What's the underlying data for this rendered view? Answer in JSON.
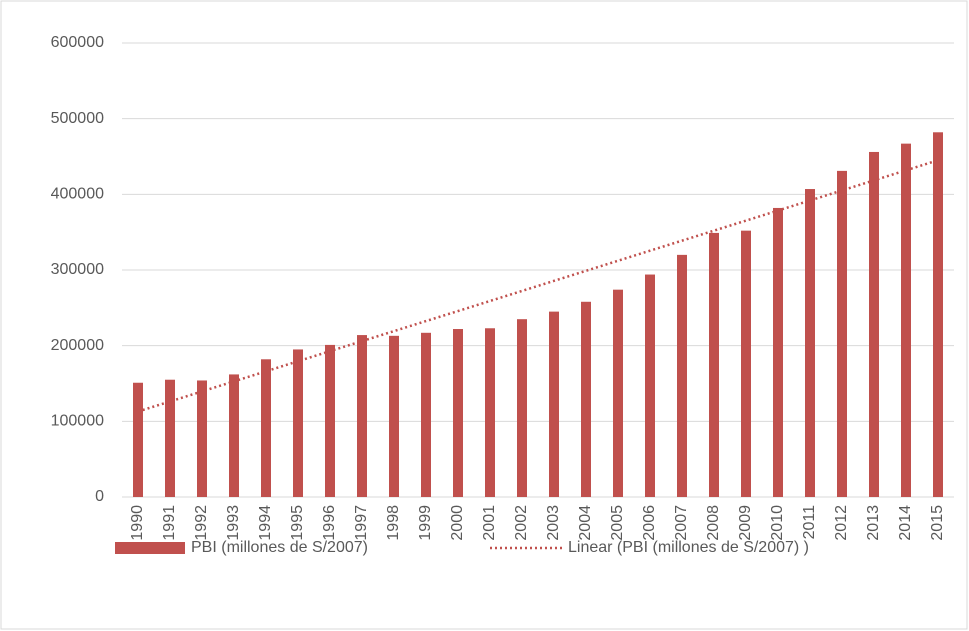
{
  "chart_data": {
    "type": "bar",
    "categories": [
      "1990",
      "1991",
      "1992",
      "1993",
      "1994",
      "1995",
      "1996",
      "1997",
      "1998",
      "1999",
      "2000",
      "2001",
      "2002",
      "2003",
      "2004",
      "2005",
      "2006",
      "2007",
      "2008",
      "2009",
      "2010",
      "2011",
      "2012",
      "2013",
      "2014",
      "2015"
    ],
    "series": [
      {
        "name": "PBI (millones de S/2007)",
        "color": "#c0504d",
        "type": "bar",
        "values": [
          151000,
          155000,
          154000,
          162000,
          182000,
          195000,
          201000,
          214000,
          213000,
          217000,
          222000,
          223000,
          235000,
          245000,
          258000,
          274000,
          294000,
          320000,
          349000,
          352000,
          382000,
          407000,
          431000,
          456000,
          467000,
          482000
        ]
      },
      {
        "name": "Linear (PBI (millones de S/2007) )",
        "color": "#c0504d",
        "type": "line",
        "dashed": true,
        "values": [
          113000,
          126280,
          139560,
          152840,
          166120,
          179400,
          192680,
          205960,
          219240,
          232520,
          245800,
          259080,
          272360,
          285640,
          298920,
          312200,
          325480,
          338760,
          352040,
          365320,
          378600,
          391880,
          405160,
          418440,
          431720,
          445000
        ]
      }
    ],
    "ylim": [
      0,
      600000
    ],
    "yticks": [
      0,
      100000,
      200000,
      300000,
      400000,
      500000,
      600000
    ],
    "grid": true,
    "legend": "bottom"
  }
}
